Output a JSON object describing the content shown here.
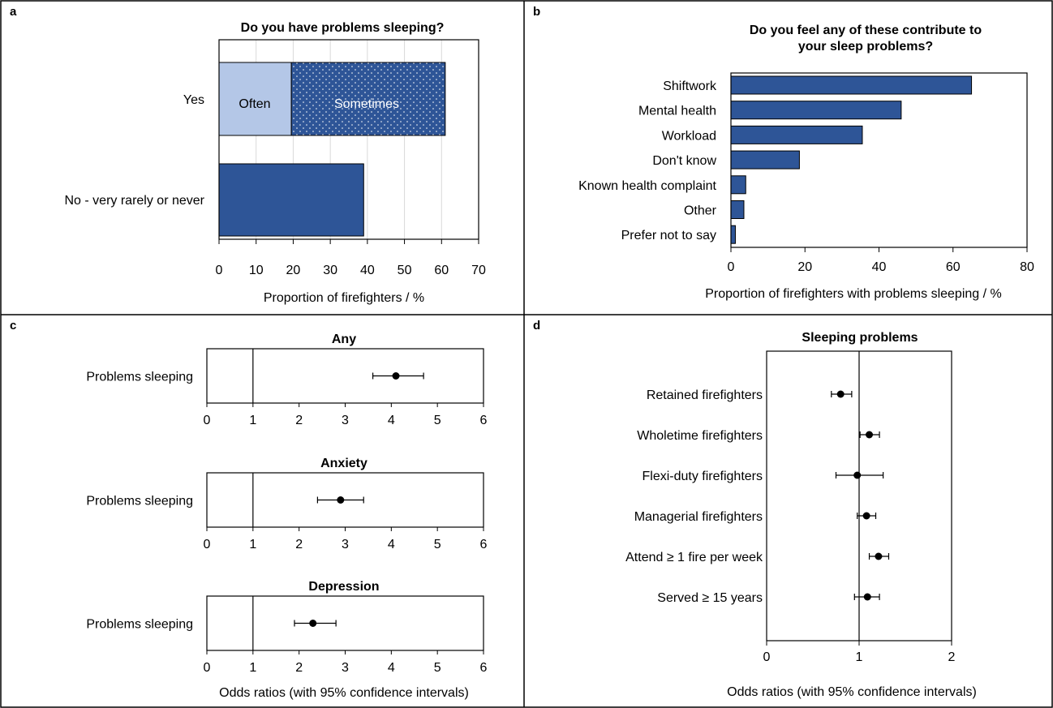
{
  "figure": {
    "colors": {
      "dark_bar": "#2e5597",
      "light_bar": "#b4c7e7",
      "dot": "#000000"
    }
  },
  "chart_data": [
    {
      "panel": "a",
      "type": "bar",
      "orientation": "horizontal",
      "stacked": true,
      "title": "Do you have problems sleeping?",
      "xlabel": "Proportion of firefighters / %",
      "ylabel": "",
      "xlim": [
        0,
        70
      ],
      "xticks": [
        "0",
        "10",
        "20",
        "30",
        "40",
        "50",
        "60",
        "70"
      ],
      "grid": "vertical",
      "categories": [
        "Yes",
        "No - very rarely or never"
      ],
      "segments": [
        {
          "category": "Yes",
          "label": "Often",
          "start": 0,
          "value": 19.5,
          "style": "light"
        },
        {
          "category": "Yes",
          "label": "Sometimes",
          "start": 19.5,
          "value": 41.5,
          "style": "dotted"
        },
        {
          "category": "No - very rarely or never",
          "label": "",
          "start": 0,
          "value": 39,
          "style": "dark"
        }
      ]
    },
    {
      "panel": "b",
      "type": "bar",
      "orientation": "horizontal",
      "title_lines": [
        "Do you feel any of these contribute to",
        "your sleep problems?"
      ],
      "xlabel": "Proportion of firefighters with problems sleeping / %",
      "ylabel": "",
      "xlim": [
        0,
        80
      ],
      "xticks": [
        "0",
        "20",
        "40",
        "60",
        "80"
      ],
      "grid": "none",
      "categories": [
        "Shiftwork",
        "Mental health",
        "Workload",
        "Don't know",
        "Known health complaint",
        "Other",
        "Prefer not to say"
      ],
      "values": [
        65,
        46,
        35.5,
        18.5,
        4,
        3.5,
        1.2
      ]
    },
    {
      "panel": "c",
      "type": "scatter",
      "subtype": "forest",
      "xlabel": "Odds ratios (with 95% confidence intervals)",
      "xlim": [
        0,
        6
      ],
      "xticks": [
        "0",
        "1",
        "2",
        "3",
        "4",
        "5",
        "6"
      ],
      "reference_line": 1,
      "subplots": [
        {
          "title": "Any",
          "rows": [
            {
              "label": "Problems sleeping",
              "or": 4.1,
              "lo": 3.6,
              "hi": 4.7
            }
          ]
        },
        {
          "title": "Anxiety",
          "rows": [
            {
              "label": "Problems sleeping",
              "or": 2.9,
              "lo": 2.4,
              "hi": 3.4
            }
          ]
        },
        {
          "title": "Depression",
          "rows": [
            {
              "label": "Problems sleeping",
              "or": 2.3,
              "lo": 1.9,
              "hi": 2.8
            }
          ]
        }
      ]
    },
    {
      "panel": "d",
      "type": "scatter",
      "subtype": "forest",
      "title": "Sleeping problems",
      "xlabel": "Odds ratios (with 95% confidence intervals)",
      "xlim": [
        0,
        2
      ],
      "xticks": [
        "0",
        "1",
        "2"
      ],
      "reference_line": 1,
      "rows": [
        {
          "label": "Retained firefighters",
          "or": 0.8,
          "lo": 0.7,
          "hi": 0.92
        },
        {
          "label": "Wholetime firefighters",
          "or": 1.11,
          "lo": 1.01,
          "hi": 1.22
        },
        {
          "label": "Flexi-duty firefighters",
          "or": 0.98,
          "lo": 0.75,
          "hi": 1.26
        },
        {
          "label": "Managerial firefighters",
          "or": 1.08,
          "lo": 0.98,
          "hi": 1.18
        },
        {
          "label": "Attend ≥ 1 fire per week",
          "or": 1.21,
          "lo": 1.11,
          "hi": 1.32
        },
        {
          "label": "Served ≥ 15 years",
          "or": 1.09,
          "lo": 0.95,
          "hi": 1.22
        }
      ]
    }
  ]
}
